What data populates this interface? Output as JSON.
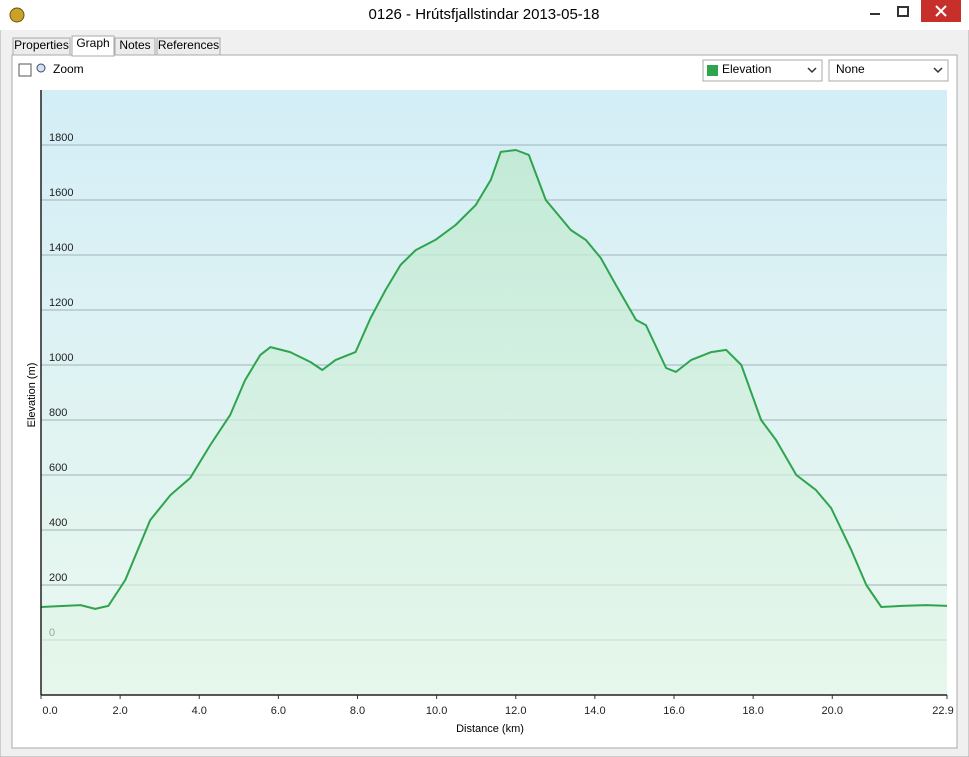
{
  "window": {
    "title": "0126 - Hrútsfjallstindar 2013-05-18"
  },
  "tabs": [
    "Properties",
    "Graph",
    "Notes",
    "References"
  ],
  "toolbar": {
    "zoom": "Zoom",
    "second_select": "None"
  },
  "chart_data": {
    "type": "area",
    "x_label": "Distance (km)",
    "y_label": "Elevation (m)",
    "xlim": [
      0,
      22.9
    ],
    "ylim": [
      -200,
      2000
    ],
    "xticks": [
      {
        "value": 0,
        "label": "0.0"
      },
      {
        "value": 2,
        "label": "2.0"
      },
      {
        "value": 4,
        "label": "4.0"
      },
      {
        "value": 6,
        "label": "6.0"
      },
      {
        "value": 8,
        "label": "8.0"
      },
      {
        "value": 10,
        "label": "10.0"
      },
      {
        "value": 12,
        "label": "12.0"
      },
      {
        "value": 14,
        "label": "14.0"
      },
      {
        "value": 16,
        "label": "16.0"
      },
      {
        "value": 18,
        "label": "18.0"
      },
      {
        "value": 20,
        "label": "20.0"
      },
      22.9
    ],
    "yticks": [
      0,
      200,
      400,
      600,
      800,
      1000,
      1200,
      1400,
      1600,
      1800
    ],
    "grid": true,
    "x": [
      0,
      1.0,
      1.37,
      1.7,
      2.13,
      2.76,
      3.27,
      3.77,
      4.28,
      4.78,
      5.16,
      5.54,
      5.8,
      6.3,
      6.81,
      7.11,
      7.44,
      7.95,
      8.33,
      8.71,
      9.09,
      9.47,
      9.97,
      10.48,
      10.99,
      11.37,
      11.62,
      12.0,
      12.33,
      12.76,
      13.39,
      13.77,
      14.15,
      14.53,
      15.04,
      15.29,
      15.8,
      16.05,
      16.43,
      16.94,
      17.32,
      17.7,
      18.2,
      18.58,
      19.09,
      19.59,
      19.97,
      20.48,
      20.86,
      21.24,
      21.75,
      22.38,
      22.9
    ],
    "series": [
      {
        "name": "Elevation",
        "color": "#2ea44f",
        "values": [
          120,
          127,
          113,
          124,
          218,
          436,
          527,
          589,
          709,
          818,
          945,
          1036,
          1065,
          1047,
          1011,
          982,
          1018,
          1047,
          1171,
          1273,
          1364,
          1418,
          1455,
          1509,
          1582,
          1673,
          1775,
          1782,
          1764,
          1600,
          1491,
          1455,
          1389,
          1291,
          1164,
          1145,
          989,
          975,
          1018,
          1047,
          1055,
          1000,
          800,
          727,
          600,
          545,
          480,
          327,
          200,
          120,
          124,
          127,
          124
        ]
      }
    ]
  }
}
